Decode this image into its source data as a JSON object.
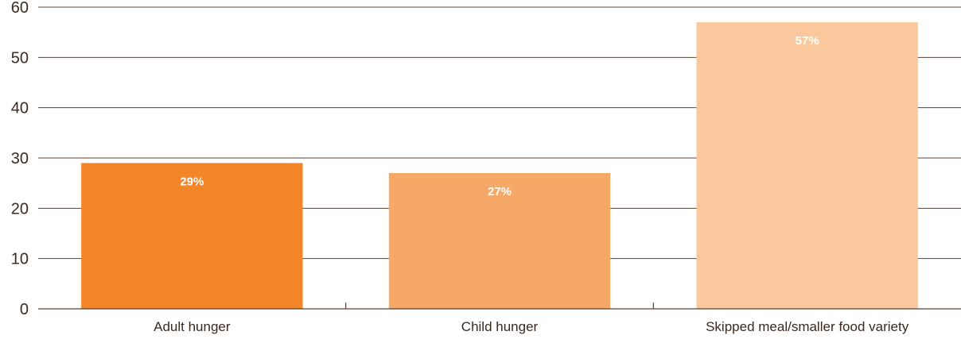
{
  "chart_data": {
    "type": "bar",
    "categories": [
      "Adult hunger",
      "Child hunger",
      "Skipped meal/smaller food variety"
    ],
    "values": [
      29,
      27,
      57
    ],
    "data_labels": [
      "29%",
      "27%",
      "57%"
    ],
    "colors": [
      "#f4862a",
      "#f6a866",
      "#fac89c"
    ],
    "ylim": [
      0,
      60
    ],
    "yticks": [
      "0",
      "10",
      "20",
      "30",
      "40",
      "50",
      "60"
    ],
    "grid": true,
    "legend": "none",
    "title": "",
    "xlabel": "",
    "ylabel": ""
  }
}
